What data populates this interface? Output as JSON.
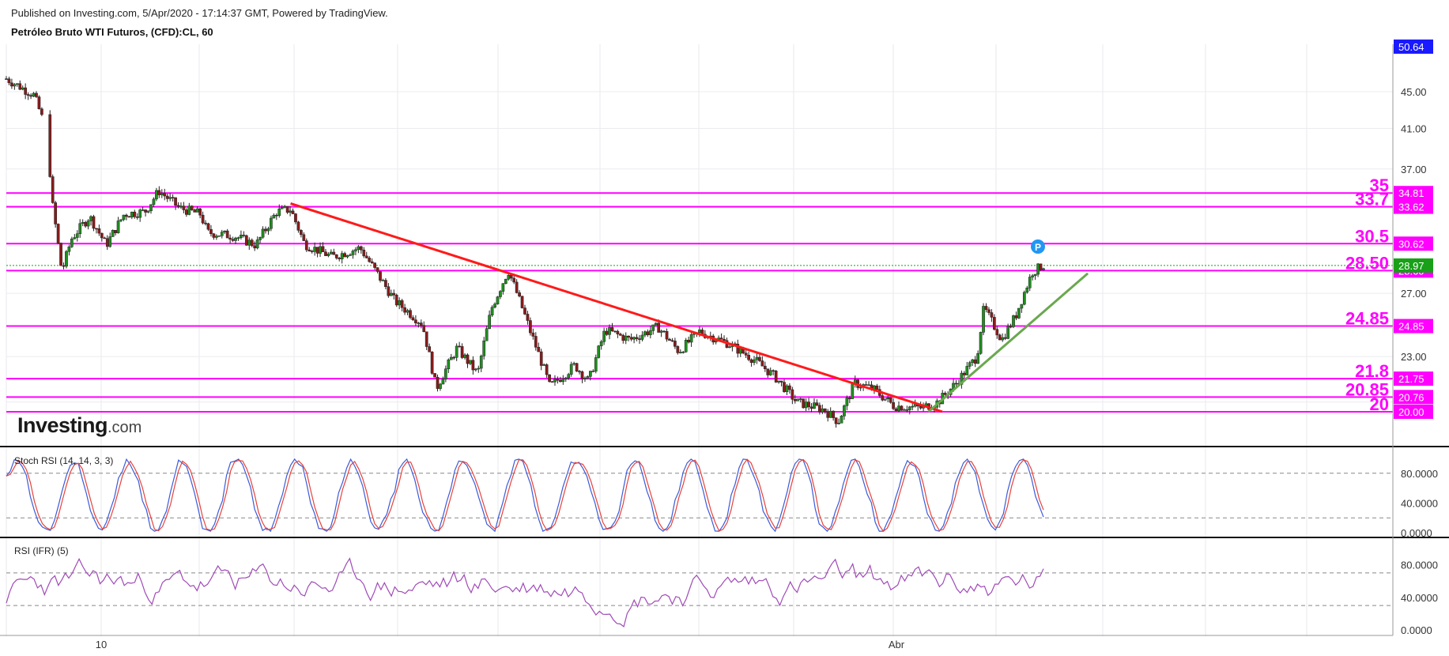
{
  "header": {
    "published": "Published on Investing.com, 5/Apr/2020 - 17:14:37 GMT, Powered by TradingView.",
    "instrument": "Petróleo Bruto WTI Futuros, (CFD):CL, 60"
  },
  "logo": {
    "brand": "Investing",
    "domain": ".com"
  },
  "colors": {
    "up": "#1e8f1e",
    "down": "#8b1a1a",
    "level": "#ff00ff",
    "downtrend": "#ff1a1a",
    "uptrend": "#6aa84f",
    "last": "#18a018",
    "stoch_k": "#3a5bd9",
    "stoch_d": "#e8423b",
    "rsi": "#a04ab8"
  },
  "chart_data": [
    {
      "type": "candlestick",
      "title": "Petróleo Bruto WTI Futuros, (CFD):CL, 60",
      "x_ticks": [
        "10",
        "Abr"
      ],
      "y_ticks": [
        "45.00",
        "41.00",
        "37.00",
        "27.00",
        "23.00"
      ],
      "price_scale": "log",
      "ylim": [
        19.0,
        48.0
      ],
      "last_price": "28.97",
      "top_badge": "50.64",
      "levels": [
        {
          "label": "35",
          "badge": "34.81",
          "value": 34.81
        },
        {
          "label": "33.7",
          "badge": "33.62",
          "value": 33.62
        },
        {
          "label": "30.5",
          "badge": "30.62",
          "value": 30.62
        },
        {
          "label": "28.50",
          "badge": "28.60",
          "value": 28.6
        },
        {
          "label": "24.85",
          "badge": "24.85",
          "value": 24.85
        },
        {
          "label": "21.8",
          "badge": "21.75",
          "value": 21.75
        },
        {
          "label": "20.85",
          "badge": "20.76",
          "value": 20.76
        },
        {
          "label": "20",
          "badge": "20.00",
          "value": 20.0
        }
      ],
      "trendlines": [
        {
          "name": "downtrend",
          "points": [
            [
              0.205,
              33.9
            ],
            [
              0.675,
              20.0
            ]
          ]
        },
        {
          "name": "uptrend",
          "points": [
            [
              0.665,
              20.0
            ],
            [
              0.78,
              28.4
            ]
          ]
        }
      ],
      "series_anchors": [
        [
          0.0,
          46.5
        ],
        [
          0.02,
          44.6
        ],
        [
          0.026,
          42.0
        ],
        [
          0.03,
          42.2
        ],
        [
          0.032,
          34.8
        ],
        [
          0.04,
          28.5
        ],
        [
          0.047,
          31.0
        ],
        [
          0.06,
          32.8
        ],
        [
          0.072,
          30.5
        ],
        [
          0.085,
          33.0
        ],
        [
          0.1,
          33.2
        ],
        [
          0.11,
          35.0
        ],
        [
          0.125,
          33.5
        ],
        [
          0.14,
          33.0
        ],
        [
          0.145,
          31.5
        ],
        [
          0.165,
          31.2
        ],
        [
          0.18,
          30.5
        ],
        [
          0.195,
          33.2
        ],
        [
          0.205,
          33.4
        ],
        [
          0.215,
          30.6
        ],
        [
          0.235,
          29.6
        ],
        [
          0.255,
          30.3
        ],
        [
          0.27,
          28.0
        ],
        [
          0.28,
          26.5
        ],
        [
          0.3,
          25.0
        ],
        [
          0.31,
          21.2
        ],
        [
          0.325,
          23.5
        ],
        [
          0.34,
          22.0
        ],
        [
          0.35,
          26.0
        ],
        [
          0.362,
          28.6
        ],
        [
          0.378,
          24.5
        ],
        [
          0.392,
          21.3
        ],
        [
          0.41,
          22.5
        ],
        [
          0.42,
          21.6
        ],
        [
          0.432,
          24.6
        ],
        [
          0.45,
          24.0
        ],
        [
          0.47,
          24.8
        ],
        [
          0.485,
          23.3
        ],
        [
          0.5,
          24.5
        ],
        [
          0.52,
          23.8
        ],
        [
          0.54,
          22.8
        ],
        [
          0.555,
          21.8
        ],
        [
          0.57,
          20.5
        ],
        [
          0.59,
          20.1
        ],
        [
          0.6,
          19.5
        ],
        [
          0.612,
          21.5
        ],
        [
          0.625,
          21.2
        ],
        [
          0.64,
          20.3
        ],
        [
          0.66,
          20.2
        ],
        [
          0.672,
          20.5
        ],
        [
          0.685,
          21.5
        ],
        [
          0.7,
          23.0
        ],
        [
          0.705,
          26.0
        ],
        [
          0.718,
          24.0
        ],
        [
          0.728,
          25.5
        ],
        [
          0.74,
          28.5
        ],
        [
          0.748,
          29.0
        ]
      ]
    },
    {
      "type": "line",
      "title": "Stoch RSI (14, 14, 3, 3)",
      "y_ticks": [
        "80.0000",
        "40.0000",
        "0.0000"
      ],
      "ylim": [
        0,
        100
      ],
      "bands": [
        80,
        20
      ]
    },
    {
      "type": "line",
      "title": "RSI (IFR) (5)",
      "y_ticks": [
        "80.0000",
        "40.0000",
        "0.0000"
      ],
      "ylim": [
        0,
        100
      ],
      "bands": [
        70,
        30
      ]
    }
  ]
}
